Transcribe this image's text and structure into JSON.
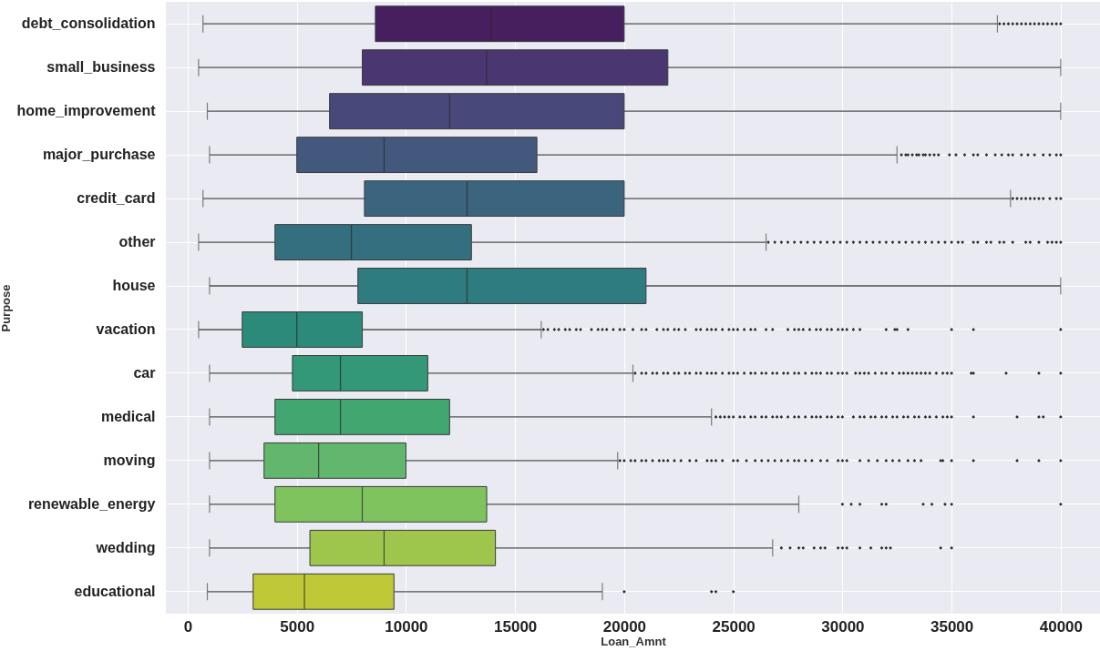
{
  "chart_data": {
    "type": "box",
    "orientation": "horizontal",
    "xlabel": "Loan_Amnt",
    "ylabel": "Purpose",
    "categories": [
      "debt_consolidation",
      "small_business",
      "home_improvement",
      "major_purchase",
      "credit_card",
      "other",
      "house",
      "vacation",
      "car",
      "medical",
      "moving",
      "renewable_energy",
      "wedding",
      "educational"
    ],
    "colors": [
      "#471e5e",
      "#4a3772",
      "#48487a",
      "#42587d",
      "#3b647f",
      "#336f7f",
      "#2f7c80",
      "#2c8a7b",
      "#339877",
      "#42a671",
      "#62b76d",
      "#7fc35f",
      "#9fc64c",
      "#bfc938"
    ],
    "boxes": [
      {
        "low": 700,
        "q1": 8600,
        "median": 13900,
        "q3": 20000,
        "high": 37100,
        "outliers": [
          37200,
          37400,
          37600,
          37800,
          38000,
          38200,
          38400,
          38600,
          38800,
          39000,
          39200,
          39400,
          39600,
          39800,
          40000
        ]
      },
      {
        "low": 500,
        "q1": 8000,
        "median": 13700,
        "q3": 22000,
        "high": 40000
      },
      {
        "low": 900,
        "q1": 6500,
        "median": 12000,
        "q3": 20000,
        "high": 40000
      },
      {
        "low": 1000,
        "q1": 5000,
        "median": 9000,
        "q3": 16000,
        "high": 32500,
        "outliers": [
          32700,
          32900,
          33000,
          33200,
          33400,
          33500,
          33700,
          33800,
          34000,
          34200,
          34400,
          34900,
          35200,
          35600,
          36000,
          36200,
          36600,
          37000,
          37300,
          37600,
          37800,
          38200,
          38500,
          38800,
          39200,
          39500,
          39800,
          40000
        ]
      },
      {
        "low": 700,
        "q1": 8100,
        "median": 12800,
        "q3": 20000,
        "high": 37700,
        "outliers": [
          37800,
          38000,
          38200,
          38400,
          38600,
          38800,
          39000,
          39200,
          39500,
          39800,
          40000
        ]
      },
      {
        "low": 500,
        "q1": 4000,
        "median": 7500,
        "q3": 13000,
        "high": 26500,
        "outliers": [
          26600,
          26900,
          27200,
          27500,
          27800,
          28100,
          28400,
          28700,
          29000,
          29300,
          29600,
          29900,
          30200,
          30500,
          30800,
          31100,
          31400,
          31700,
          32000,
          32300,
          32600,
          32900,
          33200,
          33500,
          33800,
          34100,
          34400,
          34700,
          35000,
          35300,
          35500,
          36000,
          36200,
          36600,
          36800,
          37200,
          37400,
          37800,
          38400,
          38600,
          39000,
          39400,
          39600,
          39800,
          40000
        ]
      },
      {
        "low": 1000,
        "q1": 7800,
        "median": 12800,
        "q3": 21000,
        "high": 40000
      },
      {
        "low": 500,
        "q1": 2500,
        "median": 5000,
        "q3": 8000,
        "high": 16200,
        "outliers": [
          16300,
          16500,
          16800,
          17000,
          17300,
          17500,
          17800,
          18000,
          18500,
          18800,
          19000,
          19200,
          19500,
          19800,
          20000,
          20400,
          20800,
          21000,
          21500,
          21800,
          22000,
          22300,
          22500,
          22800,
          23300,
          23500,
          23800,
          24000,
          24200,
          24500,
          24800,
          25000,
          25200,
          25500,
          25800,
          26000,
          26500,
          26800,
          27500,
          27800,
          28000,
          28200,
          28500,
          28800,
          29000,
          29300,
          29500,
          29800,
          30000,
          30200,
          30500,
          30800,
          32000,
          32400,
          32500,
          33000,
          35000,
          36000,
          40000
        ]
      },
      {
        "low": 1000,
        "q1": 4800,
        "median": 7000,
        "q3": 11000,
        "high": 20400,
        "outliers": [
          20500,
          20800,
          21000,
          21300,
          21500,
          21800,
          22000,
          22300,
          22500,
          22800,
          23000,
          23300,
          23500,
          23800,
          24000,
          24200,
          24500,
          24800,
          25000,
          25200,
          25500,
          25800,
          26000,
          26300,
          26500,
          26800,
          27000,
          27300,
          27500,
          27800,
          28000,
          28300,
          28600,
          28800,
          29000,
          29300,
          29500,
          29800,
          30000,
          30200,
          30600,
          30800,
          31000,
          31200,
          31500,
          31800,
          32000,
          32300,
          32600,
          32800,
          33000,
          33200,
          33400,
          33600,
          33800,
          34000,
          34300,
          34600,
          34800,
          35000,
          35900,
          36000,
          37500,
          39000,
          40000
        ]
      },
      {
        "low": 1000,
        "q1": 4000,
        "median": 7000,
        "q3": 12000,
        "high": 24000,
        "outliers": [
          24200,
          24400,
          24600,
          24800,
          25000,
          25300,
          25500,
          25800,
          26000,
          26300,
          26500,
          26800,
          27000,
          27200,
          27500,
          27800,
          28000,
          28300,
          28600,
          28800,
          29000,
          29300,
          29500,
          29800,
          30000,
          30500,
          30800,
          31000,
          31300,
          31500,
          31800,
          32000,
          32300,
          32500,
          32800,
          33000,
          33300,
          33500,
          33800,
          34000,
          34300,
          34600,
          34800,
          35000,
          36000,
          38000,
          39000,
          39200,
          40000
        ]
      },
      {
        "low": 1000,
        "q1": 3500,
        "median": 6000,
        "q3": 10000,
        "high": 19700,
        "outliers": [
          19800,
          20000,
          20300,
          20500,
          20800,
          21000,
          21300,
          21600,
          21800,
          22000,
          22300,
          22600,
          23000,
          23300,
          23800,
          24000,
          24200,
          24500,
          25000,
          25200,
          25600,
          26000,
          26300,
          26600,
          26900,
          27200,
          27500,
          27800,
          28000,
          28300,
          28600,
          29000,
          29300,
          29800,
          30000,
          30200,
          30800,
          31200,
          31600,
          32000,
          32300,
          32600,
          33000,
          33300,
          33600,
          34500,
          34600,
          35000,
          36000,
          38000,
          39000,
          40000
        ]
      },
      {
        "low": 1000,
        "q1": 4000,
        "median": 8000,
        "q3": 13700,
        "high": 28000,
        "outliers": [
          30000,
          30400,
          30800,
          31800,
          32000,
          33700,
          34100,
          34700,
          35000,
          40000
        ]
      },
      {
        "low": 1000,
        "q1": 5600,
        "median": 9000,
        "q3": 14100,
        "high": 26800,
        "outliers": [
          27200,
          27600,
          28000,
          28200,
          28700,
          29000,
          29200,
          29800,
          30000,
          30200,
          30800,
          31300,
          31800,
          32000,
          32200,
          34500,
          35000
        ]
      },
      {
        "low": 900,
        "q1": 3000,
        "median": 5350,
        "q3": 9450,
        "high": 19000,
        "outliers": [
          20000,
          24000,
          24200,
          25000
        ]
      }
    ],
    "xlim": [
      -1000,
      41800
    ],
    "xticks": [
      0,
      5000,
      10000,
      15000,
      20000,
      25000,
      30000,
      35000,
      40000
    ],
    "grid": true
  }
}
